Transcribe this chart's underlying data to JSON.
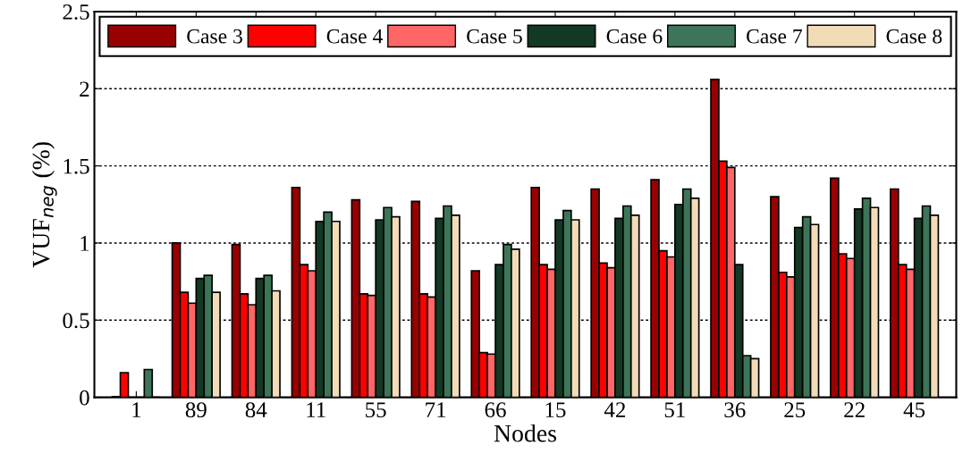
{
  "chart_data": {
    "type": "bar",
    "xlabel": "Nodes",
    "ylabel": "VUF$_{neg}$ (%)",
    "categories": [
      "1",
      "89",
      "84",
      "11",
      "55",
      "71",
      "66",
      "15",
      "42",
      "51",
      "36",
      "25",
      "22",
      "45"
    ],
    "series": [
      {
        "name": "Case 3",
        "color": "#990000",
        "values": [
          0.005,
          1.0,
          0.99,
          1.36,
          1.28,
          1.27,
          0.82,
          1.36,
          1.35,
          1.41,
          2.06,
          1.3,
          1.42,
          1.35
        ]
      },
      {
        "name": "Case 4",
        "color": "#ff0000",
        "values": [
          0.16,
          0.68,
          0.67,
          0.86,
          0.67,
          0.67,
          0.29,
          0.86,
          0.87,
          0.95,
          1.53,
          0.81,
          0.93,
          0.86
        ]
      },
      {
        "name": "Case 5",
        "color": "#ff6666",
        "values": [
          null,
          0.61,
          0.6,
          0.82,
          0.66,
          0.65,
          0.28,
          0.83,
          0.84,
          0.91,
          1.49,
          0.78,
          0.9,
          0.83
        ]
      },
      {
        "name": "Case 6",
        "color": "#133823",
        "values": [
          null,
          0.77,
          0.77,
          1.14,
          1.15,
          1.16,
          0.86,
          1.15,
          1.16,
          1.25,
          0.86,
          1.1,
          1.22,
          1.16
        ]
      },
      {
        "name": "Case 7",
        "color": "#3d7558",
        "values": [
          0.18,
          0.79,
          0.79,
          1.2,
          1.23,
          1.24,
          0.99,
          1.21,
          1.24,
          1.35,
          0.27,
          1.17,
          1.29,
          1.24
        ]
      },
      {
        "name": "Case 8",
        "color": "#f2dcb8",
        "values": [
          null,
          0.68,
          0.69,
          1.14,
          1.17,
          1.18,
          0.96,
          1.15,
          1.18,
          1.29,
          0.25,
          1.12,
          1.23,
          1.18
        ]
      }
    ],
    "ylim": [
      0,
      2.5
    ],
    "yticks": [
      0,
      0.5,
      1,
      1.5,
      2,
      2.5
    ],
    "grid": "y",
    "legend": "top"
  }
}
